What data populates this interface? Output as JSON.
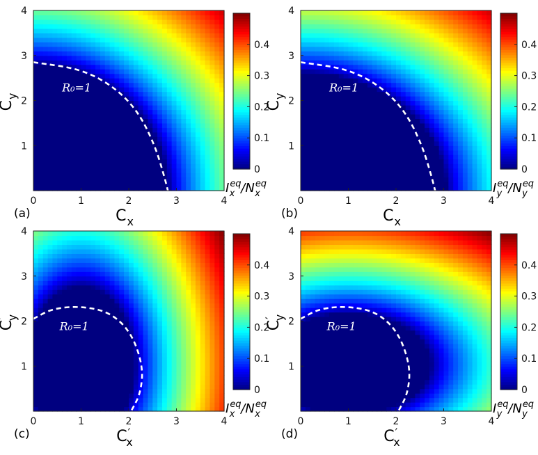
{
  "chart_data": [
    {
      "type": "heatmap",
      "panel_label": "(a)",
      "xlabel": "C_x",
      "xlabel_main": "C",
      "xlabel_sub": "x",
      "xlabel_prime": false,
      "ylabel": "C_y",
      "ylabel_main": "C",
      "ylabel_sub": "y",
      "ylabel_prime": false,
      "xlim": [
        0,
        4
      ],
      "ylim": [
        0,
        4
      ],
      "xticks": [
        "0",
        "1",
        "2",
        "3",
        "4"
      ],
      "yticks": [
        "1",
        "2",
        "3",
        "4"
      ],
      "colorbar": {
        "label": "I_x^eq/N_x^eq",
        "num_main": "I",
        "num_sub": "x",
        "den_main": "N",
        "den_sub": "x",
        "sup": "eq",
        "range": [
          0,
          0.5
        ],
        "ticks": [
          "0",
          "0.1",
          "0.2",
          "0.3",
          "0.4"
        ],
        "colormap": "jet"
      },
      "annotation": "R₀=1",
      "threshold_curve": {
        "style": "white dashed",
        "points": [
          [
            0.0,
            2.85
          ],
          [
            1.0,
            2.7
          ],
          [
            1.7,
            2.3
          ],
          [
            2.2,
            1.75
          ],
          [
            2.55,
            1.0
          ],
          [
            2.75,
            0.3
          ],
          [
            2.82,
            0.0
          ]
        ]
      },
      "field": {
        "kind": "radial",
        "fx": 1.0,
        "fy": 1.0,
        "r0": 2.82,
        "max": 0.5
      }
    },
    {
      "type": "heatmap",
      "panel_label": "(b)",
      "xlabel": "C_x",
      "xlabel_main": "C",
      "xlabel_sub": "x",
      "xlabel_prime": false,
      "ylabel": "C_y",
      "ylabel_main": "C",
      "ylabel_sub": "y",
      "ylabel_prime": false,
      "xlim": [
        0,
        4
      ],
      "ylim": [
        0,
        4
      ],
      "xticks": [
        "0",
        "1",
        "2",
        "3",
        "4"
      ],
      "yticks": [
        "1",
        "2",
        "3",
        "4"
      ],
      "colorbar": {
        "label": "I_y^eq/N_y^eq",
        "num_main": "I",
        "num_sub": "y",
        "den_main": "N",
        "den_sub": "y",
        "sup": "eq",
        "range": [
          0,
          0.5
        ],
        "ticks": [
          "0",
          "0.1",
          "0.2",
          "0.3",
          "0.4"
        ],
        "colormap": "jet"
      },
      "annotation": "R₀=1",
      "threshold_curve": {
        "style": "white dashed",
        "points": [
          [
            0.0,
            2.85
          ],
          [
            1.0,
            2.7
          ],
          [
            1.7,
            2.3
          ],
          [
            2.2,
            1.75
          ],
          [
            2.55,
            1.0
          ],
          [
            2.75,
            0.3
          ],
          [
            2.82,
            0.0
          ]
        ]
      },
      "field": {
        "kind": "radial",
        "fx": 0.85,
        "fy": 1.15,
        "r0": 2.82,
        "max": 0.5
      }
    },
    {
      "type": "heatmap",
      "panel_label": "(c)",
      "xlabel": "C'_x",
      "xlabel_main": "C",
      "xlabel_sub": "x",
      "xlabel_prime": true,
      "ylabel": "C'_y",
      "ylabel_main": "C",
      "ylabel_sub": "y",
      "ylabel_prime": true,
      "xlim": [
        0,
        4
      ],
      "ylim": [
        0,
        4
      ],
      "xticks": [
        "0",
        "1",
        "2",
        "3",
        "4"
      ],
      "yticks": [
        "1",
        "2",
        "3",
        "4"
      ],
      "colorbar": {
        "label": "I_x^eq/N_x^eq",
        "num_main": "I",
        "num_sub": "x",
        "den_main": "N",
        "den_sub": "x",
        "sup": "eq",
        "range": [
          0,
          0.5
        ],
        "ticks": [
          "0",
          "0.1",
          "0.2",
          "0.3",
          "0.4"
        ],
        "colormap": "jet"
      },
      "annotation": "R₀=1",
      "threshold_curve": {
        "style": "white dashed",
        "points": [
          [
            0.0,
            2.05
          ],
          [
            0.4,
            2.28
          ],
          [
            1.0,
            2.33
          ],
          [
            1.6,
            2.2
          ],
          [
            2.05,
            1.75
          ],
          [
            2.3,
            1.0
          ],
          [
            2.25,
            0.4
          ],
          [
            2.05,
            0.0
          ]
        ]
      },
      "field": {
        "kind": "circle",
        "cx": 1.0,
        "cy": 1.05,
        "r": 1.28,
        "sx": 1.3,
        "sy": 0.55,
        "max": 0.5
      }
    },
    {
      "type": "heatmap",
      "panel_label": "(d)",
      "xlabel": "C'_x",
      "xlabel_main": "C",
      "xlabel_sub": "x",
      "xlabel_prime": true,
      "ylabel": "C'_y",
      "ylabel_main": "C",
      "ylabel_sub": "y",
      "ylabel_prime": true,
      "xlim": [
        0,
        4
      ],
      "ylim": [
        0,
        4
      ],
      "xticks": [
        "0",
        "1",
        "2",
        "3",
        "4"
      ],
      "yticks": [
        "1",
        "2",
        "3",
        "4"
      ],
      "colorbar": {
        "label": "I_y^eq/N_y^eq",
        "num_main": "I",
        "num_sub": "y",
        "den_main": "N",
        "den_sub": "y",
        "sup": "eq",
        "range": [
          0,
          0.5
        ],
        "ticks": [
          "0",
          "0.1",
          "0.2",
          "0.3",
          "0.4"
        ],
        "colormap": "jet"
      },
      "annotation": "R₀=1",
      "threshold_curve": {
        "style": "white dashed",
        "points": [
          [
            0.0,
            2.05
          ],
          [
            0.4,
            2.28
          ],
          [
            1.0,
            2.33
          ],
          [
            1.6,
            2.2
          ],
          [
            2.05,
            1.75
          ],
          [
            2.3,
            1.0
          ],
          [
            2.25,
            0.4
          ],
          [
            2.05,
            0.0
          ]
        ]
      },
      "field": {
        "kind": "circle",
        "cx": 1.0,
        "cy": 1.05,
        "r": 1.28,
        "sx": 0.55,
        "sy": 1.3,
        "max": 0.5
      }
    }
  ]
}
